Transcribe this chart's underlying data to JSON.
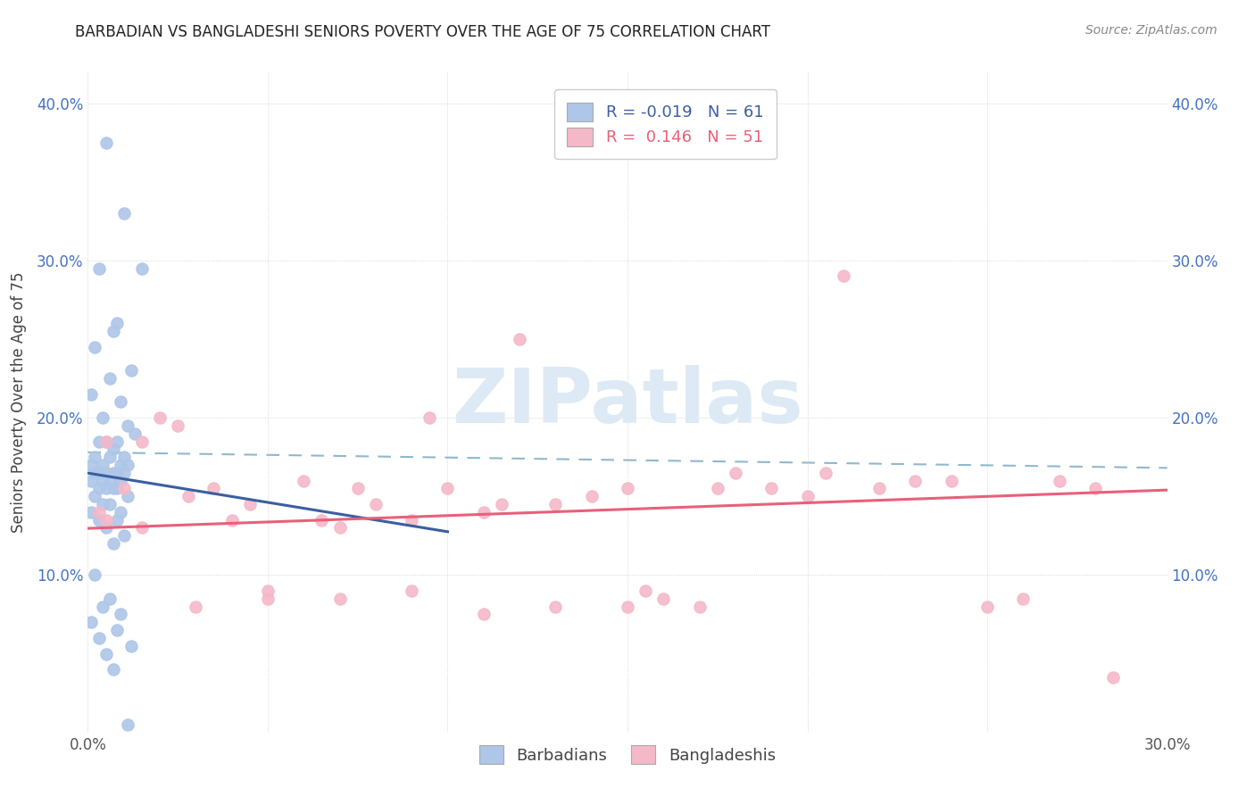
{
  "title": "BARBADIAN VS BANGLADESHI SENIORS POVERTY OVER THE AGE OF 75 CORRELATION CHART",
  "source": "Source: ZipAtlas.com",
  "ylabel": "Seniors Poverty Over the Age of 75",
  "xlim": [
    0.0,
    0.3
  ],
  "ylim": [
    0.0,
    0.42
  ],
  "x_ticks": [
    0.0,
    0.05,
    0.1,
    0.15,
    0.2,
    0.25,
    0.3
  ],
  "y_ticks": [
    0.0,
    0.1,
    0.2,
    0.3,
    0.4
  ],
  "barbadian_color": "#aec6e8",
  "bangladeshi_color": "#f5b8c8",
  "barbadian_line_color": "#3a5fa0",
  "bangladeshi_line_color": "#e8607a",
  "dash_line_color": "#90b8cc",
  "tick_color": "#4472c4",
  "R_barbadian": -0.019,
  "N_barbadian": 61,
  "R_bangladeshi": 0.146,
  "N_bangladeshi": 51,
  "barbadian_x": [
    0.005,
    0.01,
    0.015,
    0.008,
    0.003,
    0.012,
    0.007,
    0.002,
    0.009,
    0.006,
    0.004,
    0.011,
    0.001,
    0.013,
    0.008,
    0.005,
    0.003,
    0.007,
    0.01,
    0.002,
    0.006,
    0.009,
    0.004,
    0.011,
    0.001,
    0.008,
    0.005,
    0.003,
    0.007,
    0.002,
    0.01,
    0.006,
    0.004,
    0.009,
    0.001,
    0.008,
    0.003,
    0.005,
    0.007,
    0.011,
    0.002,
    0.006,
    0.004,
    0.009,
    0.001,
    0.008,
    0.003,
    0.005,
    0.01,
    0.007,
    0.002,
    0.006,
    0.004,
    0.009,
    0.001,
    0.008,
    0.003,
    0.012,
    0.005,
    0.007,
    0.011
  ],
  "barbadian_y": [
    0.375,
    0.33,
    0.295,
    0.26,
    0.295,
    0.23,
    0.255,
    0.245,
    0.21,
    0.225,
    0.2,
    0.195,
    0.215,
    0.19,
    0.185,
    0.185,
    0.185,
    0.18,
    0.175,
    0.175,
    0.175,
    0.17,
    0.17,
    0.17,
    0.17,
    0.165,
    0.165,
    0.165,
    0.165,
    0.165,
    0.165,
    0.16,
    0.16,
    0.16,
    0.16,
    0.155,
    0.155,
    0.155,
    0.155,
    0.15,
    0.15,
    0.145,
    0.145,
    0.14,
    0.14,
    0.135,
    0.135,
    0.13,
    0.125,
    0.12,
    0.1,
    0.085,
    0.08,
    0.075,
    0.07,
    0.065,
    0.06,
    0.055,
    0.05,
    0.04,
    0.005
  ],
  "bangladeshi_x": [
    0.003,
    0.005,
    0.01,
    0.015,
    0.02,
    0.025,
    0.028,
    0.035,
    0.04,
    0.045,
    0.05,
    0.06,
    0.065,
    0.07,
    0.075,
    0.08,
    0.09,
    0.095,
    0.1,
    0.11,
    0.115,
    0.12,
    0.13,
    0.14,
    0.15,
    0.155,
    0.16,
    0.175,
    0.18,
    0.19,
    0.2,
    0.205,
    0.21,
    0.22,
    0.23,
    0.24,
    0.25,
    0.26,
    0.27,
    0.28,
    0.285,
    0.005,
    0.015,
    0.03,
    0.05,
    0.07,
    0.09,
    0.11,
    0.13,
    0.15,
    0.17
  ],
  "bangladeshi_y": [
    0.14,
    0.135,
    0.155,
    0.13,
    0.2,
    0.195,
    0.15,
    0.155,
    0.135,
    0.145,
    0.09,
    0.16,
    0.135,
    0.13,
    0.155,
    0.145,
    0.135,
    0.2,
    0.155,
    0.14,
    0.145,
    0.25,
    0.145,
    0.15,
    0.155,
    0.09,
    0.085,
    0.155,
    0.165,
    0.155,
    0.15,
    0.165,
    0.29,
    0.155,
    0.16,
    0.16,
    0.08,
    0.085,
    0.16,
    0.155,
    0.035,
    0.185,
    0.185,
    0.08,
    0.085,
    0.085,
    0.09,
    0.075,
    0.08,
    0.08,
    0.08
  ],
  "background_color": "#ffffff",
  "grid_color": "#cccccc",
  "watermark_color": "#ddeaf5",
  "watermark_text": "ZIPatlas"
}
